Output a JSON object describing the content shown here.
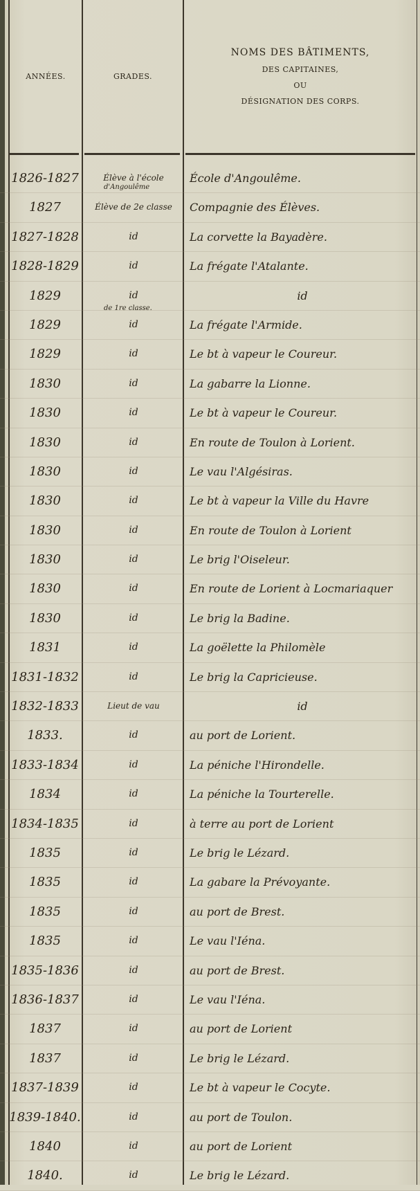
{
  "header": {
    "years": "ANNÉES.",
    "grades": "GRADES.",
    "names_line1": "NOMS DES BÂTIMENTS,",
    "names_line2": "DES CAPITAINES,",
    "names_line3": "OU",
    "names_line4": "DÉSIGNATION DES CORPS."
  },
  "notes": {
    "grade_cont": "d'Angoulême",
    "grade_first_class": "de 1re classe."
  },
  "rows": [
    {
      "year": "1826-1827",
      "grade": "Élève à l'école",
      "posting": "École d'Angoulême."
    },
    {
      "year": "1827",
      "grade": "Élève de 2e classe",
      "posting": "Compagnie des Élèves."
    },
    {
      "year": "1827-1828",
      "grade": "id",
      "posting": "La corvette la Bayadère."
    },
    {
      "year": "1828-1829",
      "grade": "id",
      "posting": "La frégate l'Atalante."
    },
    {
      "year": "1829",
      "grade": "id",
      "posting": "id"
    },
    {
      "year": "1829",
      "grade": "id",
      "posting": "La frégate l'Armide."
    },
    {
      "year": "1829",
      "grade": "id",
      "posting": "Le bt à vapeur le Coureur."
    },
    {
      "year": "1830",
      "grade": "id",
      "posting": "La gabarre la Lionne."
    },
    {
      "year": "1830",
      "grade": "id",
      "posting": "Le bt à vapeur le Coureur."
    },
    {
      "year": "1830",
      "grade": "id",
      "posting": "En route de Toulon à Lorient."
    },
    {
      "year": "1830",
      "grade": "id",
      "posting": "Le vau l'Algésiras."
    },
    {
      "year": "1830",
      "grade": "id",
      "posting": "Le bt à vapeur la Ville du Havre"
    },
    {
      "year": "1830",
      "grade": "id",
      "posting": "En route de Toulon à Lorient"
    },
    {
      "year": "1830",
      "grade": "id",
      "posting": "Le brig l'Oiseleur."
    },
    {
      "year": "1830",
      "grade": "id",
      "posting": "En route de Lorient à Locmariaquer"
    },
    {
      "year": "1830",
      "grade": "id",
      "posting": "Le brig la Badine."
    },
    {
      "year": "1831",
      "grade": "id",
      "posting": "La goëlette la Philomèle"
    },
    {
      "year": "1831-1832",
      "grade": "id",
      "posting": "Le brig la Capricieuse."
    },
    {
      "year": "1832-1833",
      "grade": "Lieut de vau",
      "posting": "id"
    },
    {
      "year": "1833.",
      "grade": "id",
      "posting": "au port de Lorient."
    },
    {
      "year": "1833-1834",
      "grade": "id",
      "posting": "La péniche l'Hirondelle."
    },
    {
      "year": "1834",
      "grade": "id",
      "posting": "La péniche la Tourterelle."
    },
    {
      "year": "1834-1835",
      "grade": "id",
      "posting": "à terre au port de Lorient"
    },
    {
      "year": "1835",
      "grade": "id",
      "posting": "Le brig le Lézard."
    },
    {
      "year": "1835",
      "grade": "id",
      "posting": "La gabare la Prévoyante."
    },
    {
      "year": "1835",
      "grade": "id",
      "posting": "au port de Brest."
    },
    {
      "year": "1835",
      "grade": "id",
      "posting": "Le vau l'Iéna."
    },
    {
      "year": "1835-1836",
      "grade": "id",
      "posting": "au port de Brest."
    },
    {
      "year": "1836-1837",
      "grade": "id",
      "posting": "Le vau l'Iéna."
    },
    {
      "year": "1837",
      "grade": "id",
      "posting": "au port de Lorient"
    },
    {
      "year": "1837",
      "grade": "id",
      "posting": "Le brig le Lézard."
    },
    {
      "year": "1837-1839",
      "grade": "id",
      "posting": "Le bt à vapeur le Cocyte."
    },
    {
      "year": "1839-1840.",
      "grade": "id",
      "posting": "au port de Toulon."
    },
    {
      "year": "1840",
      "grade": "id",
      "posting": "au port de Lorient"
    },
    {
      "year": "1840.",
      "grade": "id",
      "posting": "Le brig le Lézard."
    }
  ]
}
